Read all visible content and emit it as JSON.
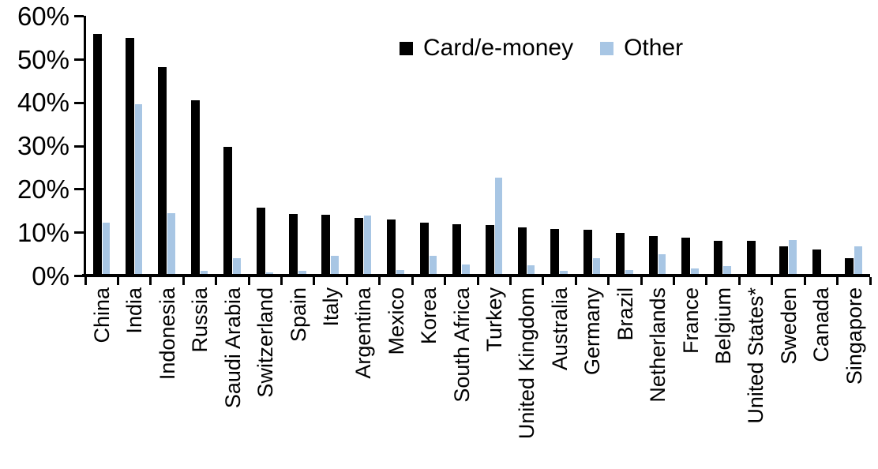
{
  "chart_data": {
    "type": "bar",
    "title": "",
    "xlabel": "",
    "ylabel": "",
    "ylim": [
      0,
      60
    ],
    "y_tick_step": 10,
    "y_tick_labels": [
      "0%",
      "10%",
      "20%",
      "30%",
      "40%",
      "50%",
      "60%"
    ],
    "grid": false,
    "legend_position": "top-center",
    "categories": [
      "China",
      "India",
      "Indonesia",
      "Russia",
      "Saudi Arabia",
      "Switzerland",
      "Spain",
      "Italy",
      "Argentina",
      "Mexico",
      "Korea",
      "South Africa",
      "Turkey",
      "United Kingdom",
      "Australia",
      "Germany",
      "Brazil",
      "Netherlands",
      "France",
      "Belgium",
      "United States*",
      "Sweden",
      "Canada",
      "Singapore"
    ],
    "series": [
      {
        "name": "Card/e-money",
        "color": "#000000",
        "values": [
          56,
          55,
          48.3,
          40.6,
          29.9,
          15.8,
          14.4,
          14.2,
          13.5,
          13.0,
          12.4,
          11.9,
          11.8,
          11.2,
          10.9,
          10.7,
          10.0,
          9.3,
          8.8,
          8.2,
          8.1,
          6.8,
          6.2,
          4.1
        ]
      },
      {
        "name": "Other",
        "color": "#A8C6E4",
        "values": [
          12.4,
          39.7,
          14.5,
          1.2,
          4.1,
          0.9,
          1.1,
          4.7,
          14.0,
          1.4,
          4.7,
          2.6,
          22.7,
          2.4,
          1.2,
          4.1,
          1.3,
          5.1,
          1.7,
          2.2,
          0.4,
          8.3,
          0,
          6.8
        ]
      }
    ]
  },
  "colors": {
    "card_series": "#000000",
    "other_series": "#A8C6E4",
    "axis": "#000000",
    "background": "#FFFFFF"
  }
}
